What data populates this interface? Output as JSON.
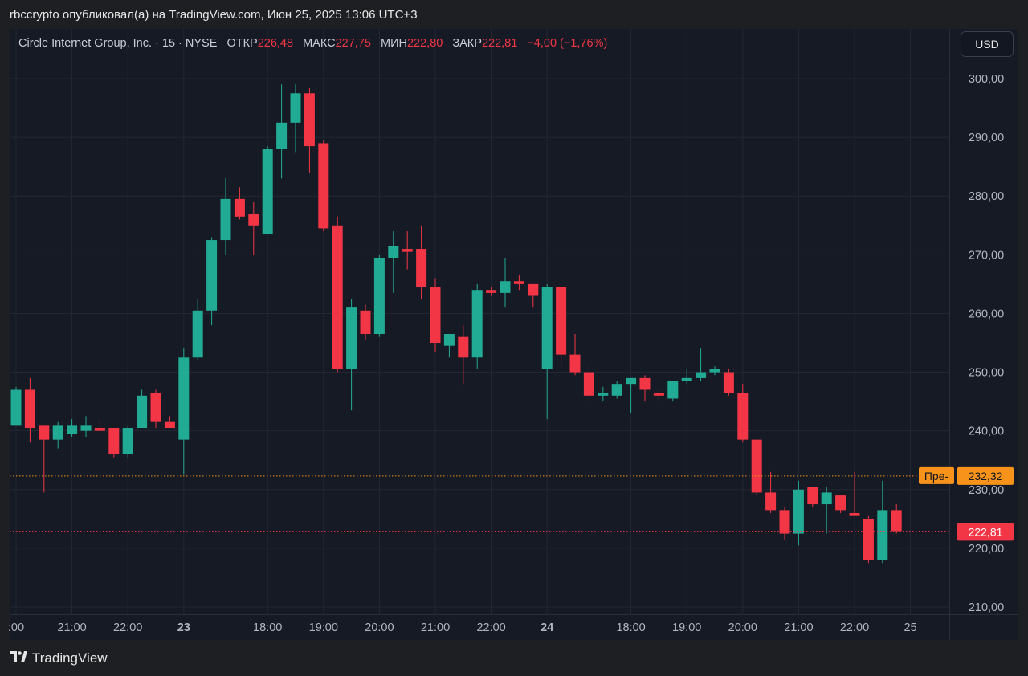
{
  "post": {
    "author": "rbccrypto",
    "text": "опубликовал(а) на TradingView.com, Июн 25, 2025 13:06 UTC+3"
  },
  "legend": {
    "symbol": "Circle Internet Group, Inc. · 15 · NYSE",
    "open_label": "ОТКР",
    "open": "226,48",
    "high_label": "МАКС",
    "high": "227,75",
    "low_label": "МИН",
    "low": "222,80",
    "close_label": "ЗАКР",
    "close": "222,81",
    "change": "−4,00 (−1,76%)"
  },
  "currency_button": "USD",
  "brand": "TradingView",
  "colors": {
    "up": "#22ab94",
    "down": "#f23645",
    "premarket": "#f7931a",
    "background": "#161a25",
    "grid": "#232733"
  },
  "chart_data": {
    "type": "candlestick",
    "y_axis": {
      "min": 210,
      "max": 300,
      "step": 10,
      "position": "right",
      "tick_labels": [
        "210,00",
        "220,00",
        "230,00",
        "240,00",
        "250,00",
        "260,00",
        "270,00",
        "280,00",
        "290,00",
        "300,00"
      ]
    },
    "x_ticks": [
      {
        "label": ":00",
        "bar": 0
      },
      {
        "label": "21:00",
        "bar": 4
      },
      {
        "label": "22:00",
        "bar": 8
      },
      {
        "label": "23",
        "bar": 12,
        "bold": true
      },
      {
        "label": "18:00",
        "bar": 18
      },
      {
        "label": "19:00",
        "bar": 22
      },
      {
        "label": "20:00",
        "bar": 26
      },
      {
        "label": "21:00",
        "bar": 30
      },
      {
        "label": "22:00",
        "bar": 34
      },
      {
        "label": "24",
        "bar": 38,
        "bold": true
      },
      {
        "label": "18:00",
        "bar": 44
      },
      {
        "label": "19:00",
        "bar": 48
      },
      {
        "label": "20:00",
        "bar": 52
      },
      {
        "label": "21:00",
        "bar": 56
      },
      {
        "label": "22:00",
        "bar": 60
      },
      {
        "label": "25",
        "bar": 64
      }
    ],
    "candles": [
      [
        241.0,
        247.5,
        241.0,
        247.0
      ],
      [
        247.0,
        249.0,
        238.0,
        240.5
      ],
      [
        241.0,
        241.0,
        229.5,
        238.5
      ],
      [
        238.5,
        241.5,
        237.0,
        241.0
      ],
      [
        239.5,
        242.0,
        239.0,
        241.0
      ],
      [
        240.0,
        242.5,
        239.0,
        241.0
      ],
      [
        240.5,
        242.0,
        240.0,
        240.0
      ],
      [
        240.5,
        240.5,
        235.5,
        236.0
      ],
      [
        236.0,
        241.0,
        235.5,
        240.5
      ],
      [
        240.5,
        247.0,
        240.5,
        246.0
      ],
      [
        246.5,
        247.0,
        240.5,
        241.5
      ],
      [
        241.5,
        242.5,
        240.5,
        240.5
      ],
      [
        238.5,
        254.0,
        232.5,
        252.5
      ],
      [
        252.5,
        262.5,
        252.0,
        260.5
      ],
      [
        260.5,
        273.0,
        258.0,
        272.5
      ],
      [
        272.5,
        283.0,
        270.0,
        279.5
      ],
      [
        279.5,
        281.5,
        276.0,
        276.5
      ],
      [
        277.0,
        279.0,
        270.0,
        275.0
      ],
      [
        273.5,
        288.5,
        273.5,
        288.0
      ],
      [
        288.0,
        299.0,
        283.0,
        292.5
      ],
      [
        292.5,
        299.0,
        287.5,
        297.5
      ],
      [
        297.5,
        298.5,
        284.0,
        288.5
      ],
      [
        289.0,
        289.5,
        274.0,
        274.5
      ],
      [
        275.0,
        276.5,
        250.0,
        250.5
      ],
      [
        250.5,
        262.5,
        243.5,
        261.0
      ],
      [
        260.5,
        261.5,
        255.5,
        256.5
      ],
      [
        256.5,
        270.0,
        256.0,
        269.5
      ],
      [
        269.5,
        274.0,
        263.5,
        271.5
      ],
      [
        271.0,
        274.0,
        267.5,
        270.5
      ],
      [
        271.0,
        275.0,
        262.5,
        264.5
      ],
      [
        264.5,
        266.0,
        253.5,
        255.0
      ],
      [
        254.5,
        256.0,
        252.5,
        256.5
      ],
      [
        256.0,
        258.0,
        248.0,
        252.5
      ],
      [
        252.5,
        265.0,
        250.5,
        264.0
      ],
      [
        264.0,
        264.5,
        263.0,
        263.5
      ],
      [
        263.5,
        269.5,
        261.0,
        265.5
      ],
      [
        265.5,
        266.5,
        264.0,
        265.0
      ],
      [
        265.0,
        265.0,
        261.0,
        263.0
      ],
      [
        250.5,
        265.0,
        242.0,
        264.5
      ],
      [
        264.5,
        264.5,
        251.0,
        253.0
      ],
      [
        253.0,
        256.5,
        249.5,
        250.0
      ],
      [
        250.0,
        251.0,
        245.0,
        246.0
      ],
      [
        246.0,
        247.5,
        245.0,
        246.5
      ],
      [
        246.0,
        248.5,
        245.5,
        248.0
      ],
      [
        248.0,
        249.0,
        243.0,
        249.0
      ],
      [
        249.0,
        249.5,
        245.0,
        247.0
      ],
      [
        246.5,
        247.0,
        245.0,
        246.0
      ],
      [
        245.5,
        248.5,
        245.0,
        248.5
      ],
      [
        248.5,
        250.5,
        248.0,
        249.0
      ],
      [
        249.0,
        254.0,
        248.5,
        250.0
      ],
      [
        250.0,
        251.0,
        249.5,
        250.5
      ],
      [
        250.0,
        250.5,
        246.0,
        246.5
      ],
      [
        246.5,
        248.0,
        238.0,
        238.5
      ],
      [
        238.5,
        238.5,
        229.0,
        229.5
      ],
      [
        229.5,
        233.0,
        226.0,
        226.5
      ],
      [
        226.5,
        227.0,
        221.5,
        222.5
      ],
      [
        222.5,
        231.5,
        220.5,
        230.0
      ],
      [
        230.5,
        230.5,
        227.0,
        227.5
      ],
      [
        227.5,
        230.5,
        222.5,
        229.5
      ],
      [
        229.0,
        229.0,
        226.0,
        226.5
      ],
      [
        226.0,
        233.0,
        225.5,
        225.5
      ],
      [
        225.0,
        225.5,
        217.5,
        218.0
      ],
      [
        218.0,
        231.5,
        217.5,
        226.5
      ],
      [
        226.5,
        227.5,
        222.5,
        222.8
      ]
    ],
    "price_lines": [
      {
        "name": "Пре-",
        "value": 232.32,
        "label": "232,32",
        "color": "#f7931a"
      },
      {
        "name": "",
        "value": 222.81,
        "label": "222,81",
        "color": "#f23645"
      }
    ]
  }
}
